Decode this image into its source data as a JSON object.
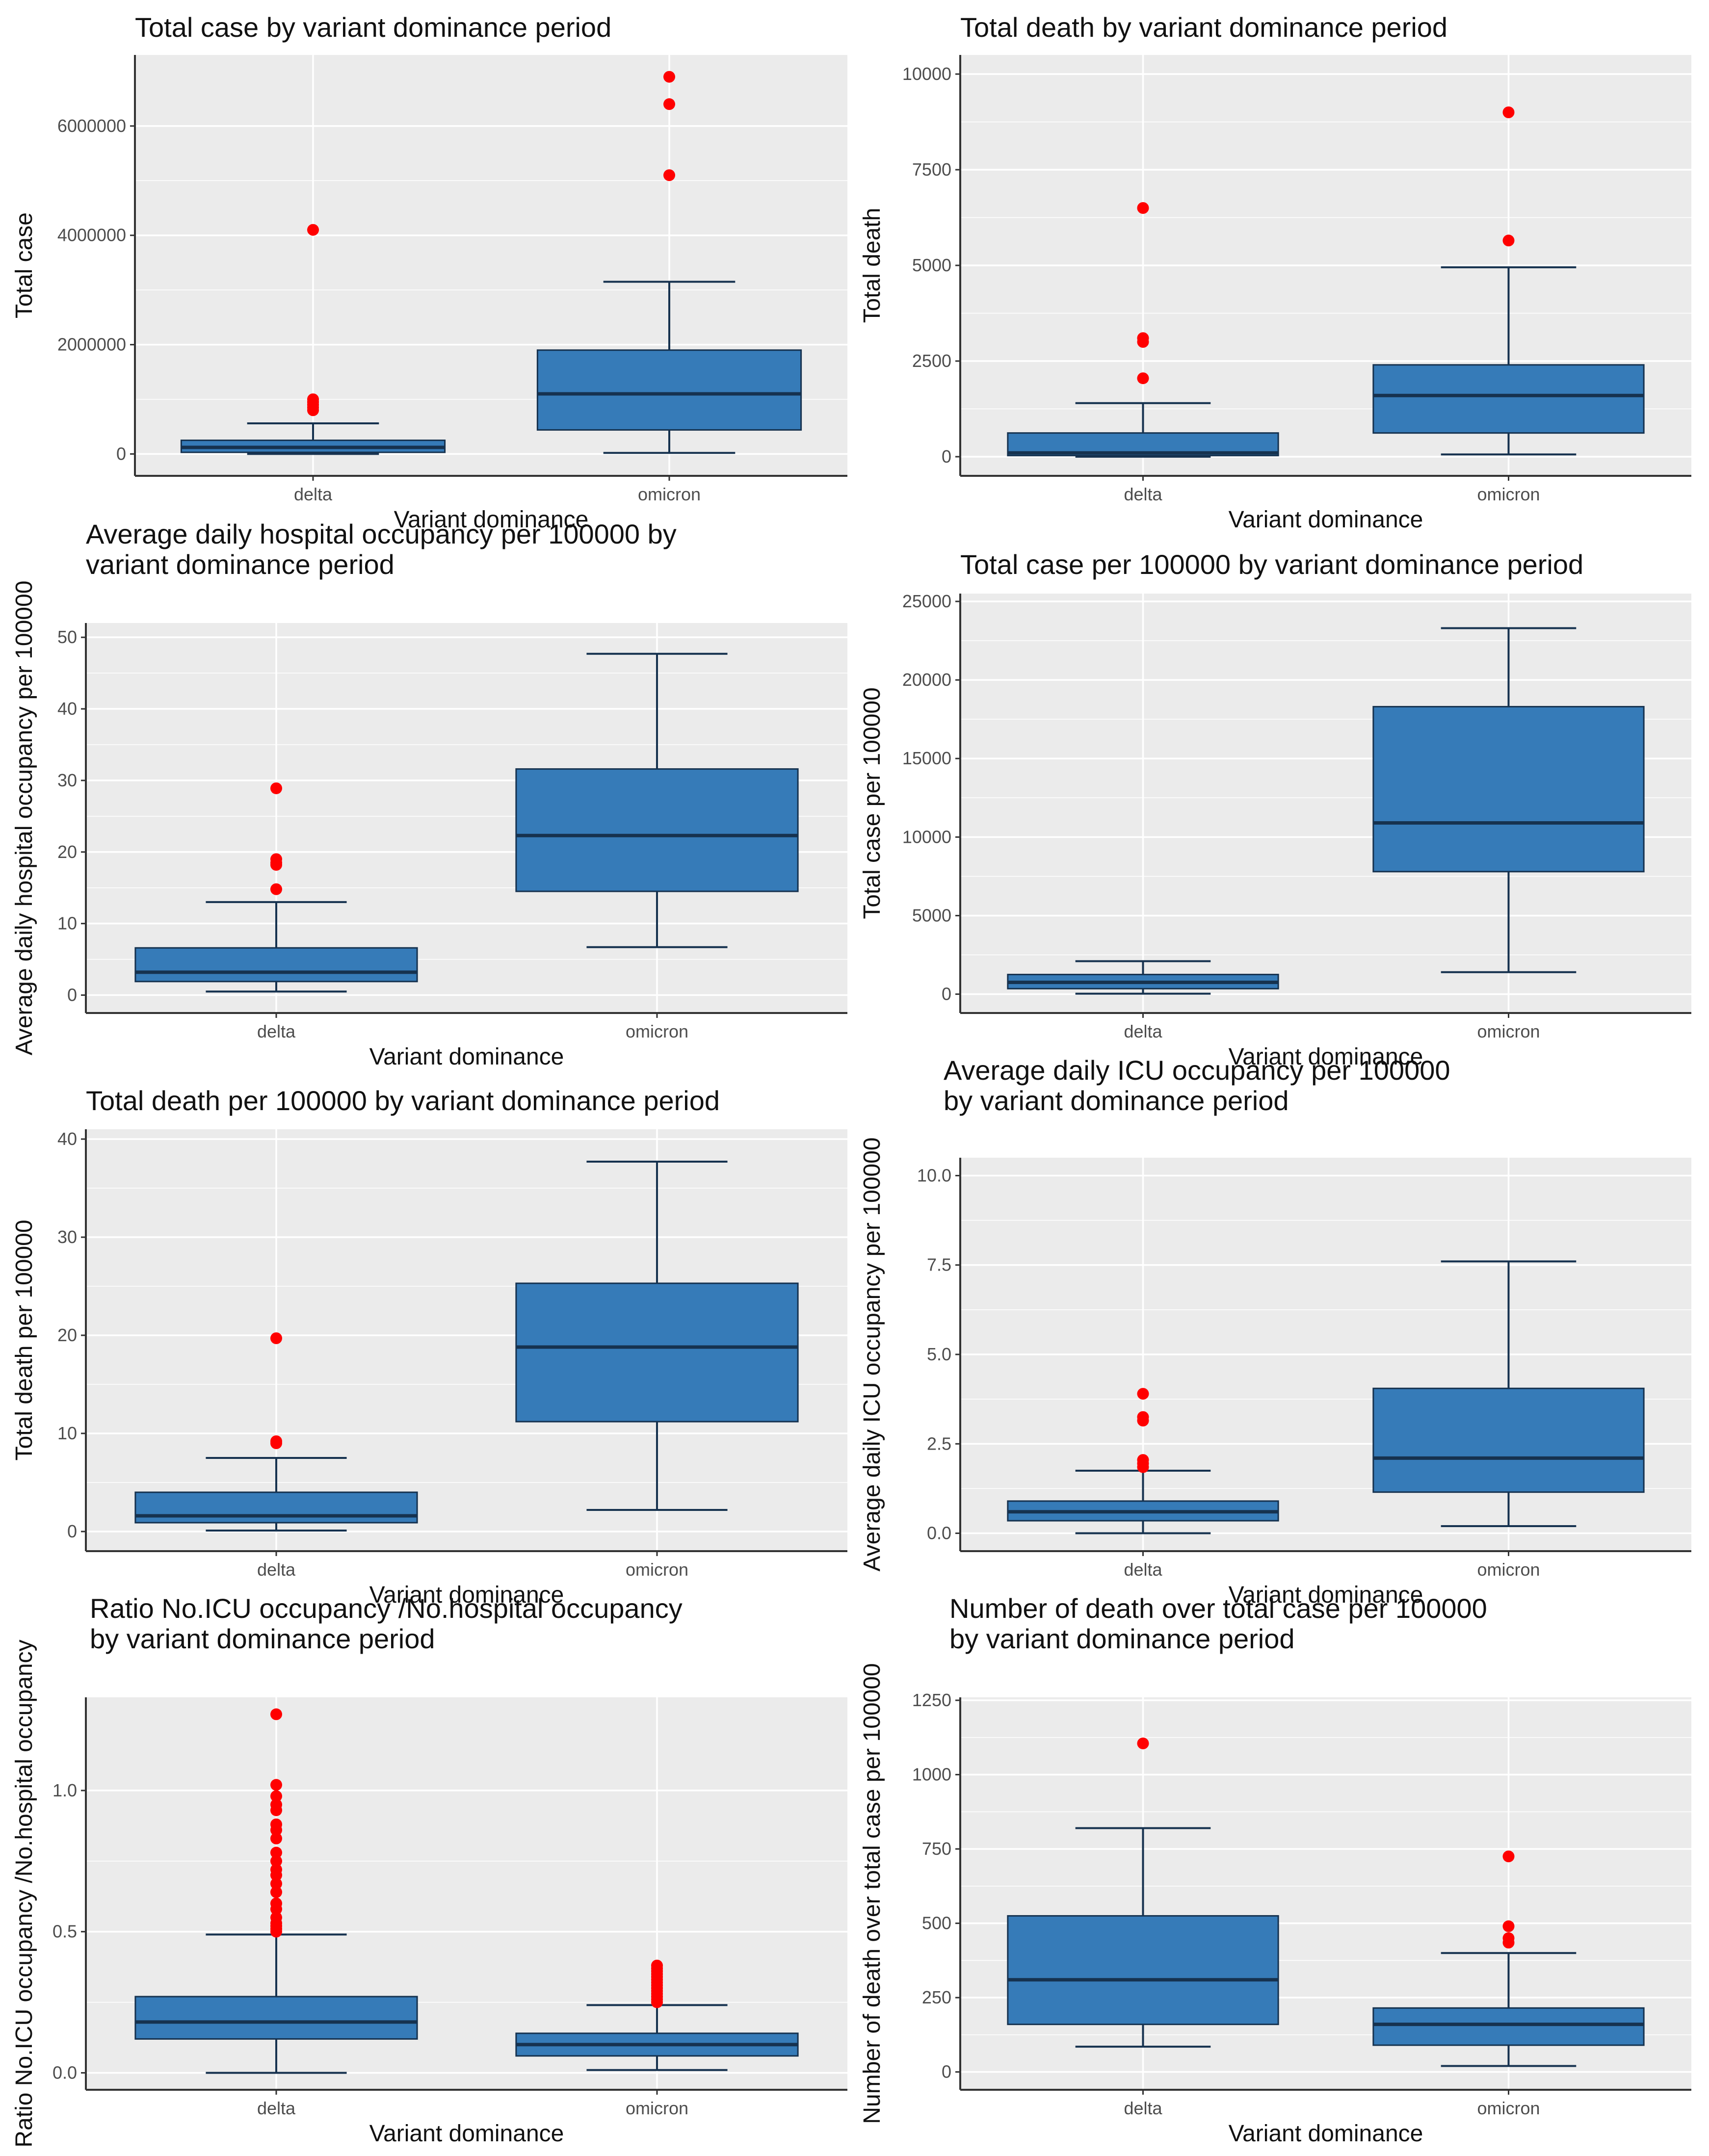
{
  "figure": {
    "title": "Boxplots of COVID-19 outcomes by variant dominance period"
  },
  "style": {
    "panel_bg": "#ebebeb",
    "grid": "#ffffff",
    "box_fill": "#367bb8",
    "box_line": "#16324f",
    "outlier": "#ff0000"
  },
  "chart_data": [
    {
      "type": "box",
      "title_lines": [
        "Total case by variant dominance period"
      ],
      "xlabel": "Variant dominance",
      "ylabel": "Total case",
      "ylim": [
        -400000,
        7300000
      ],
      "yticks": [
        0,
        2000000,
        4000000,
        6000000
      ],
      "ytick_labels": [
        "0",
        "2000000",
        "4000000",
        "6000000"
      ],
      "categories": [
        "delta",
        "omicron"
      ],
      "boxes": [
        {
          "min": 0,
          "q1": 30000,
          "median": 120000,
          "q3": 250000,
          "max": 560000,
          "outliers": [
            4100000,
            1000000,
            950000,
            900000,
            850000,
            800000
          ]
        },
        {
          "min": 20000,
          "q1": 440000,
          "median": 1100000,
          "q3": 1900000,
          "max": 3150000,
          "outliers": [
            6900000,
            6400000,
            5100000
          ]
        }
      ]
    },
    {
      "type": "box",
      "title_lines": [
        "Total death by variant dominance period"
      ],
      "xlabel": "Variant dominance",
      "ylabel": "Total death",
      "ylim": [
        -500,
        10500
      ],
      "yticks": [
        0,
        2500,
        5000,
        7500,
        10000
      ],
      "ytick_labels": [
        "0",
        "2500",
        "5000",
        "7500",
        "10000"
      ],
      "categories": [
        "delta",
        "omicron"
      ],
      "boxes": [
        {
          "min": 0,
          "q1": 30,
          "median": 100,
          "q3": 620,
          "max": 1400,
          "outliers": [
            6500,
            3100,
            3000,
            2050
          ]
        },
        {
          "min": 60,
          "q1": 620,
          "median": 1600,
          "q3": 2400,
          "max": 4950,
          "outliers": [
            9000,
            5650
          ]
        }
      ]
    },
    {
      "type": "box",
      "title_lines": [
        "Average daily hospital occupancy per 100000 by",
        "variant dominance period"
      ],
      "xlabel": "Variant dominance",
      "ylabel": "Average daily hospital occupancy per 100000",
      "ylim": [
        -2.5,
        52
      ],
      "yticks": [
        0,
        10,
        20,
        30,
        40,
        50
      ],
      "ytick_labels": [
        "0",
        "10",
        "20",
        "30",
        "40",
        "50"
      ],
      "categories": [
        "delta",
        "omicron"
      ],
      "boxes": [
        {
          "min": 0.5,
          "q1": 1.9,
          "median": 3.2,
          "q3": 6.6,
          "max": 13,
          "outliers": [
            28.9,
            19,
            18.5,
            18.2,
            14.8
          ]
        },
        {
          "min": 6.7,
          "q1": 14.5,
          "median": 22.3,
          "q3": 31.6,
          "max": 47.7,
          "outliers": []
        }
      ]
    },
    {
      "type": "box",
      "title_lines": [
        "Total case per 100000 by variant dominance period"
      ],
      "xlabel": "Variant dominance",
      "ylabel": "Total case per 100000",
      "ylim": [
        -1200,
        25500
      ],
      "yticks": [
        0,
        5000,
        10000,
        15000,
        20000,
        25000
      ],
      "ytick_labels": [
        "0",
        "5000",
        "10000",
        "15000",
        "20000",
        "25000"
      ],
      "categories": [
        "delta",
        "omicron"
      ],
      "boxes": [
        {
          "min": 30,
          "q1": 350,
          "median": 750,
          "q3": 1250,
          "max": 2100,
          "outliers": []
        },
        {
          "min": 1400,
          "q1": 7800,
          "median": 10900,
          "q3": 18300,
          "max": 23300,
          "outliers": []
        }
      ]
    },
    {
      "type": "box",
      "title_lines": [
        "Total death per 100000 by variant dominance period"
      ],
      "xlabel": "Variant dominance",
      "ylabel": "Total death per 100000",
      "ylim": [
        -2,
        41
      ],
      "yticks": [
        0,
        10,
        20,
        30,
        40
      ],
      "ytick_labels": [
        "0",
        "10",
        "20",
        "30",
        "40"
      ],
      "categories": [
        "delta",
        "omicron"
      ],
      "boxes": [
        {
          "min": 0.1,
          "q1": 0.9,
          "median": 1.6,
          "q3": 4,
          "max": 7.5,
          "outliers": [
            19.7,
            9.2,
            9
          ]
        },
        {
          "min": 2.2,
          "q1": 11.2,
          "median": 18.8,
          "q3": 25.3,
          "max": 37.7,
          "outliers": []
        }
      ]
    },
    {
      "type": "box",
      "title_lines": [
        "Average daily ICU occupancy per 100000",
        "by variant dominance period"
      ],
      "xlabel": "Variant dominance",
      "ylabel": "Average daily ICU occupancy per 100000",
      "ylim": [
        -0.5,
        10.5
      ],
      "yticks": [
        0,
        2.5,
        5,
        7.5,
        10
      ],
      "ytick_labels": [
        "0.0",
        "2.5",
        "5.0",
        "7.5",
        "10.0"
      ],
      "categories": [
        "delta",
        "omicron"
      ],
      "boxes": [
        {
          "min": 0,
          "q1": 0.35,
          "median": 0.6,
          "q3": 0.9,
          "max": 1.75,
          "outliers": [
            3.9,
            3.25,
            3.15,
            2.05,
            1.95,
            1.85
          ]
        },
        {
          "min": 0.2,
          "q1": 1.15,
          "median": 2.1,
          "q3": 4.05,
          "max": 7.6,
          "outliers": []
        }
      ]
    },
    {
      "type": "box",
      "title_lines": [
        "Ratio No.ICU occupancy /No.hospital occupancy",
        "by variant dominance period"
      ],
      "xlabel": "Variant dominance",
      "ylabel": "Ratio No.ICU occupancy /No.hospital occupancy",
      "ylim": [
        -0.06,
        1.33
      ],
      "yticks": [
        0,
        0.5,
        1
      ],
      "ytick_labels": [
        "0.0",
        "0.5",
        "1.0"
      ],
      "categories": [
        "delta",
        "omicron"
      ],
      "boxes": [
        {
          "min": 0,
          "q1": 0.12,
          "median": 0.18,
          "q3": 0.27,
          "max": 0.49,
          "outliers": [
            1.27,
            1.02,
            0.98,
            0.95,
            0.93,
            0.88,
            0.86,
            0.83,
            0.78,
            0.75,
            0.72,
            0.7,
            0.67,
            0.64,
            0.6,
            0.58,
            0.55,
            0.53,
            0.52,
            0.51,
            0.5
          ]
        },
        {
          "min": 0.01,
          "q1": 0.06,
          "median": 0.1,
          "q3": 0.14,
          "max": 0.24,
          "outliers": [
            0.38,
            0.37,
            0.36,
            0.35,
            0.34,
            0.33,
            0.32,
            0.31,
            0.3,
            0.29,
            0.28,
            0.27,
            0.26,
            0.25
          ]
        }
      ]
    },
    {
      "type": "box",
      "title_lines": [
        "Number of death over total case per 100000",
        "by variant dominance period"
      ],
      "xlabel": "Variant dominance",
      "ylabel": "Number of death over total case per 100000",
      "ylim": [
        -60,
        1260
      ],
      "yticks": [
        0,
        250,
        500,
        750,
        1000,
        1250
      ],
      "ytick_labels": [
        "0",
        "250",
        "500",
        "750",
        "1000",
        "1250"
      ],
      "categories": [
        "delta",
        "omicron"
      ],
      "boxes": [
        {
          "min": 85,
          "q1": 160,
          "median": 310,
          "q3": 525,
          "max": 820,
          "outliers": [
            1105
          ]
        },
        {
          "min": 20,
          "q1": 90,
          "median": 160,
          "q3": 215,
          "max": 400,
          "outliers": [
            725,
            490,
            450,
            435
          ]
        }
      ]
    }
  ]
}
